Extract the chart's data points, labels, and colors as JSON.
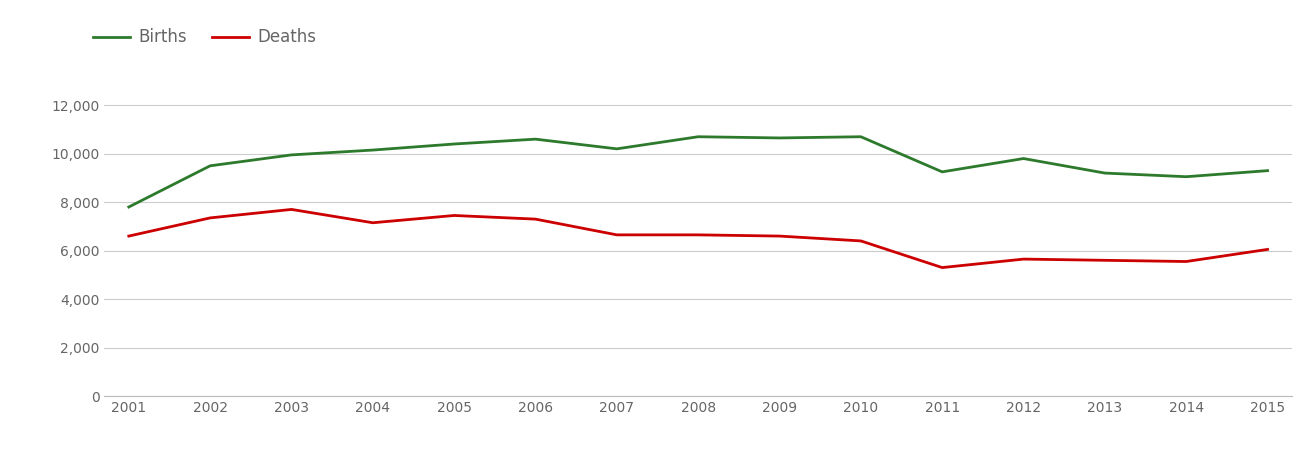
{
  "years": [
    2001,
    2002,
    2003,
    2004,
    2005,
    2006,
    2007,
    2008,
    2009,
    2010,
    2011,
    2012,
    2013,
    2014,
    2015
  ],
  "births": [
    7800,
    9500,
    9950,
    10150,
    10400,
    10600,
    10200,
    10700,
    10650,
    10700,
    9250,
    9800,
    9200,
    9050,
    9300
  ],
  "deaths": [
    6600,
    7350,
    7700,
    7150,
    7450,
    7300,
    6650,
    6650,
    6600,
    6400,
    5300,
    5650,
    5600,
    5550,
    6050
  ],
  "births_color": "#2d7a2d",
  "deaths_color": "#cc0000",
  "line_width": 2.0,
  "ylim": [
    0,
    13000
  ],
  "yticks": [
    0,
    2000,
    4000,
    6000,
    8000,
    10000,
    12000
  ],
  "legend_births": "Births",
  "legend_deaths": "Deaths",
  "bg_color": "#ffffff",
  "grid_color": "#cccccc",
  "tick_color": "#666666",
  "spine_color": "#bbbbbb",
  "legend_fontsize": 12
}
